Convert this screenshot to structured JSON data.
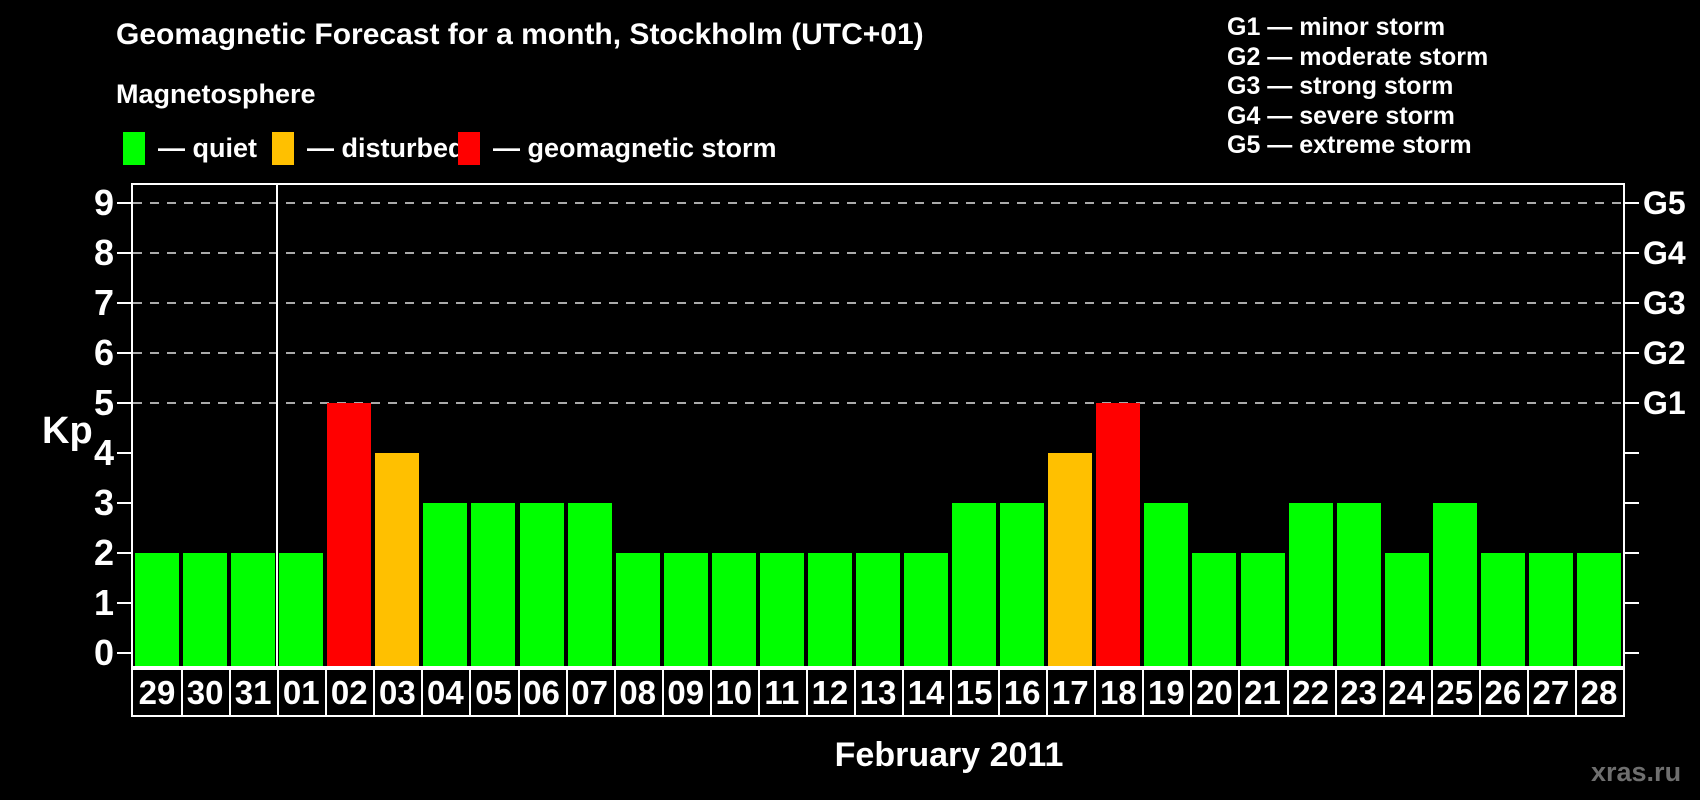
{
  "header": {
    "title": "Geomagnetic Forecast for a month, Stockholm (UTC+01)",
    "subtitle": "Magnetosphere"
  },
  "legend": {
    "items": [
      {
        "name": "quiet",
        "label": "— quiet",
        "color": "#00ff00"
      },
      {
        "name": "disturbed",
        "label": "— disturbed",
        "color": "#ffc000"
      },
      {
        "name": "storm",
        "label": "— geomagnetic storm",
        "color": "#ff0000"
      }
    ]
  },
  "storm_scale": {
    "items": [
      "G1 — minor storm",
      "G2 — moderate storm",
      "G3 — strong storm",
      "G4 — severe storm",
      "G5 — extreme storm"
    ]
  },
  "chart_data": {
    "type": "bar",
    "title": "Geomagnetic Forecast for a month, Stockholm (UTC+01)",
    "ylabel": "Kp",
    "xlabel": "February 2011",
    "ylim": [
      0,
      9.4
    ],
    "y_ticks": [
      0,
      1,
      2,
      3,
      4,
      5,
      6,
      7,
      8,
      9
    ],
    "gridlines_at_kp": [
      5,
      6,
      7,
      8,
      9
    ],
    "grid": "dashed, G-levels only",
    "right_axis": {
      "labels": [
        "G1",
        "G2",
        "G3",
        "G4",
        "G5"
      ],
      "at_kp": [
        5,
        6,
        7,
        8,
        9
      ]
    },
    "categories": [
      "29",
      "30",
      "31",
      "01",
      "02",
      "03",
      "04",
      "05",
      "06",
      "07",
      "08",
      "09",
      "10",
      "11",
      "12",
      "13",
      "14",
      "15",
      "16",
      "17",
      "18",
      "19",
      "20",
      "21",
      "22",
      "23",
      "24",
      "25",
      "26",
      "27",
      "28"
    ],
    "values": [
      2,
      2,
      2,
      2,
      5,
      4,
      3,
      3,
      3,
      3,
      2,
      2,
      2,
      2,
      2,
      2,
      2,
      3,
      3,
      4,
      5,
      3,
      2,
      2,
      3,
      3,
      2,
      3,
      2,
      2,
      2
    ],
    "statuses": [
      "quiet",
      "quiet",
      "quiet",
      "quiet",
      "storm",
      "disturbed",
      "quiet",
      "quiet",
      "quiet",
      "quiet",
      "quiet",
      "quiet",
      "quiet",
      "quiet",
      "quiet",
      "quiet",
      "quiet",
      "quiet",
      "quiet",
      "disturbed",
      "storm",
      "quiet",
      "quiet",
      "quiet",
      "quiet",
      "quiet",
      "quiet",
      "quiet",
      "quiet",
      "quiet",
      "quiet"
    ],
    "status_colors": {
      "quiet": "#00ff00",
      "disturbed": "#ffc000",
      "storm": "#ff0000"
    },
    "month_separator_before_category": "01",
    "legend_position": "top-left"
  },
  "footer": {
    "month_label": "February 2011",
    "watermark": "xras.ru"
  }
}
